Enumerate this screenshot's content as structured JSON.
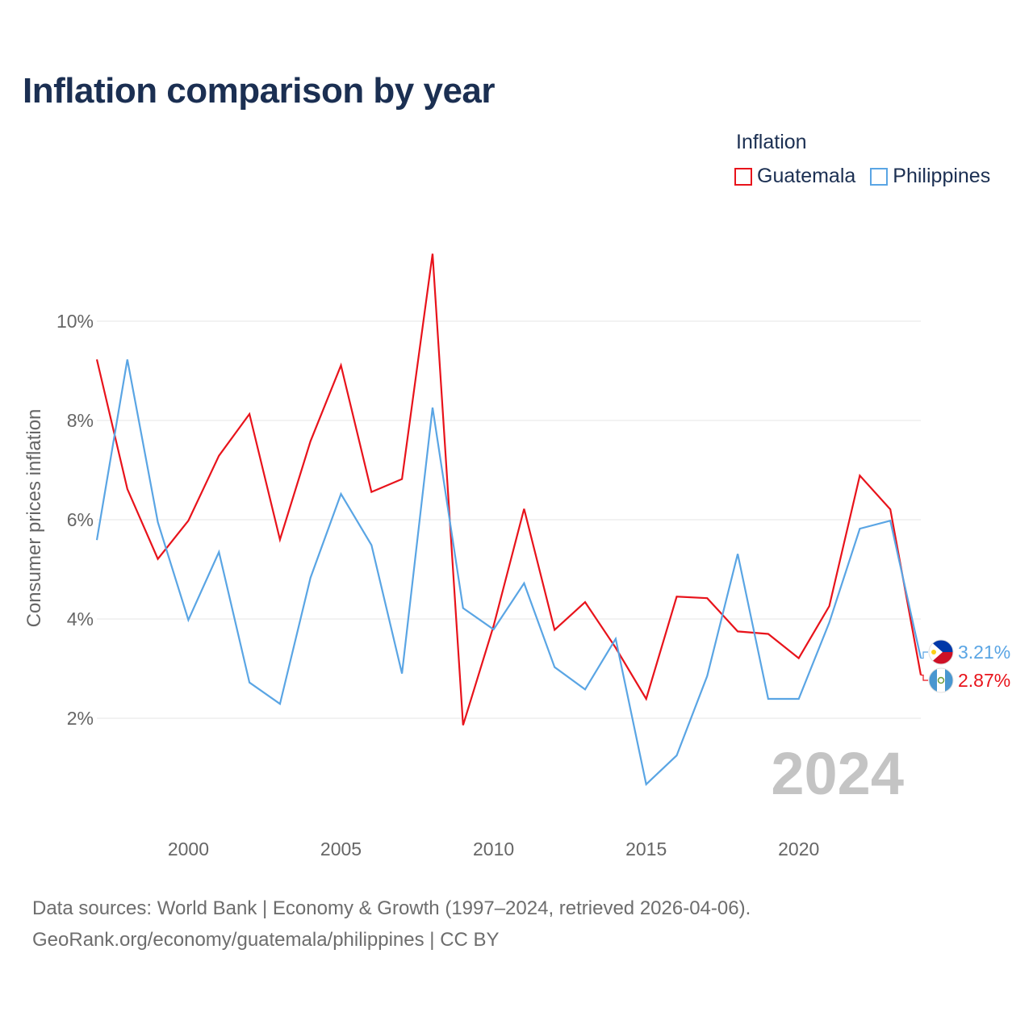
{
  "title": "Inflation comparison by year",
  "legend": {
    "title": "Inflation",
    "items": [
      {
        "label": "Guatemala",
        "color": "#e8131b"
      },
      {
        "label": "Philippines",
        "color": "#5aa5e4"
      }
    ]
  },
  "footer": {
    "line1": "Data sources: World Bank | Economy & Growth (1997–2024, retrieved 2026-04-06).",
    "line2": "GeoRank.org/economy/guatemala/philippines | CC BY"
  },
  "chart_data": {
    "type": "line",
    "title": "Inflation comparison by year",
    "xlabel": "",
    "ylabel": "Consumer prices inflation",
    "x": [
      1997,
      1998,
      1999,
      2000,
      2001,
      2002,
      2003,
      2004,
      2005,
      2006,
      2007,
      2008,
      2009,
      2010,
      2011,
      2012,
      2013,
      2014,
      2015,
      2016,
      2017,
      2018,
      2019,
      2020,
      2021,
      2022,
      2023,
      2024
    ],
    "xlim": [
      1997,
      2024
    ],
    "ylim": [
      0,
      12
    ],
    "x_ticks": [
      2000,
      2005,
      2010,
      2015,
      2020
    ],
    "y_ticks": [
      {
        "value": 2,
        "label": "2%"
      },
      {
        "value": 4,
        "label": "4%"
      },
      {
        "value": 6,
        "label": "6%"
      },
      {
        "value": 8,
        "label": "8%"
      },
      {
        "value": 10,
        "label": "10%"
      }
    ],
    "grid": true,
    "year_watermark": "2024",
    "series": [
      {
        "name": "Guatemala",
        "color": "#e8131b",
        "end_label": "2.87%",
        "values": [
          9.23,
          6.62,
          5.21,
          5.98,
          7.29,
          8.13,
          5.6,
          7.58,
          9.11,
          6.56,
          6.82,
          11.36,
          1.86,
          3.86,
          6.22,
          3.78,
          4.34,
          3.42,
          2.39,
          4.45,
          4.42,
          3.75,
          3.7,
          3.21,
          4.26,
          6.89,
          6.21,
          2.87
        ]
      },
      {
        "name": "Philippines",
        "color": "#5aa5e4",
        "end_label": "3.21%",
        "values": [
          5.59,
          9.23,
          5.95,
          3.98,
          5.35,
          2.72,
          2.29,
          4.83,
          6.52,
          5.49,
          2.9,
          8.26,
          4.22,
          3.79,
          4.72,
          3.03,
          2.58,
          3.6,
          0.67,
          1.25,
          2.85,
          5.31,
          2.39,
          2.39,
          3.93,
          5.82,
          5.98,
          3.21
        ]
      }
    ]
  }
}
